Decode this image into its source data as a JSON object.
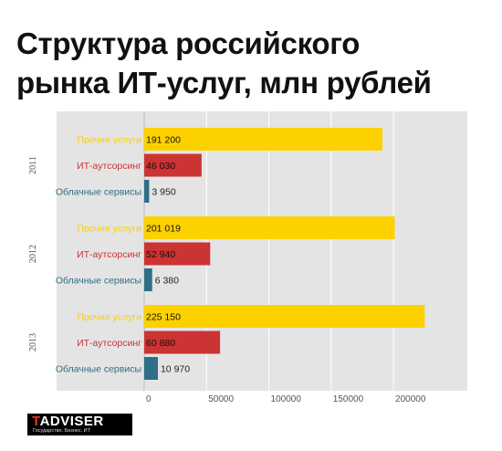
{
  "title_lines": [
    "Структура российского",
    "рынка ИТ-услуг, млн рублей"
  ],
  "logo": {
    "mark_first": "T",
    "mark_rest": "ADVISER",
    "tagline": "Государство. Бизнес. ИТ"
  },
  "colors": {
    "Прочие услуги": "#fdd000",
    "ИТ-аутсорсинг": "#cc3333",
    "Облачные сервисы": "#2e6e86",
    "panel": "#e4e4e4",
    "grid": "#ffffff",
    "tick": "#555555"
  },
  "chart_data": {
    "type": "bar",
    "orientation": "horizontal",
    "title": "Структура российского рынка ИТ-услуг, млн рублей",
    "xlim": [
      0,
      230000
    ],
    "xticks": [
      0,
      50000,
      100000,
      150000,
      200000
    ],
    "xtick_labels": [
      "0",
      "50000",
      "100000",
      "150000",
      "200000"
    ],
    "grid": true,
    "legend": "none",
    "groups": [
      {
        "name": "2011",
        "bars": [
          {
            "category": "Прочие услуги",
            "value": 191200,
            "label": "191 200"
          },
          {
            "category": "ИТ-аутсорсинг",
            "value": 46030,
            "label": "46 030"
          },
          {
            "category": "Облачные сервисы",
            "value": 3950,
            "label": "3 950"
          }
        ]
      },
      {
        "name": "2012",
        "bars": [
          {
            "category": "Прочие услуги",
            "value": 201019,
            "label": "201 019"
          },
          {
            "category": "ИТ-аутсорсинг",
            "value": 52940,
            "label": "52 940"
          },
          {
            "category": "Облачные сервисы",
            "value": 6380,
            "label": "6 380"
          }
        ]
      },
      {
        "name": "2013",
        "bars": [
          {
            "category": "Прочие услуги",
            "value": 225150,
            "label": "225 150"
          },
          {
            "category": "ИТ-аутсорсинг",
            "value": 60880,
            "label": "60 880"
          },
          {
            "category": "Облачные сервисы",
            "value": 10970,
            "label": "10 970"
          }
        ]
      }
    ]
  }
}
